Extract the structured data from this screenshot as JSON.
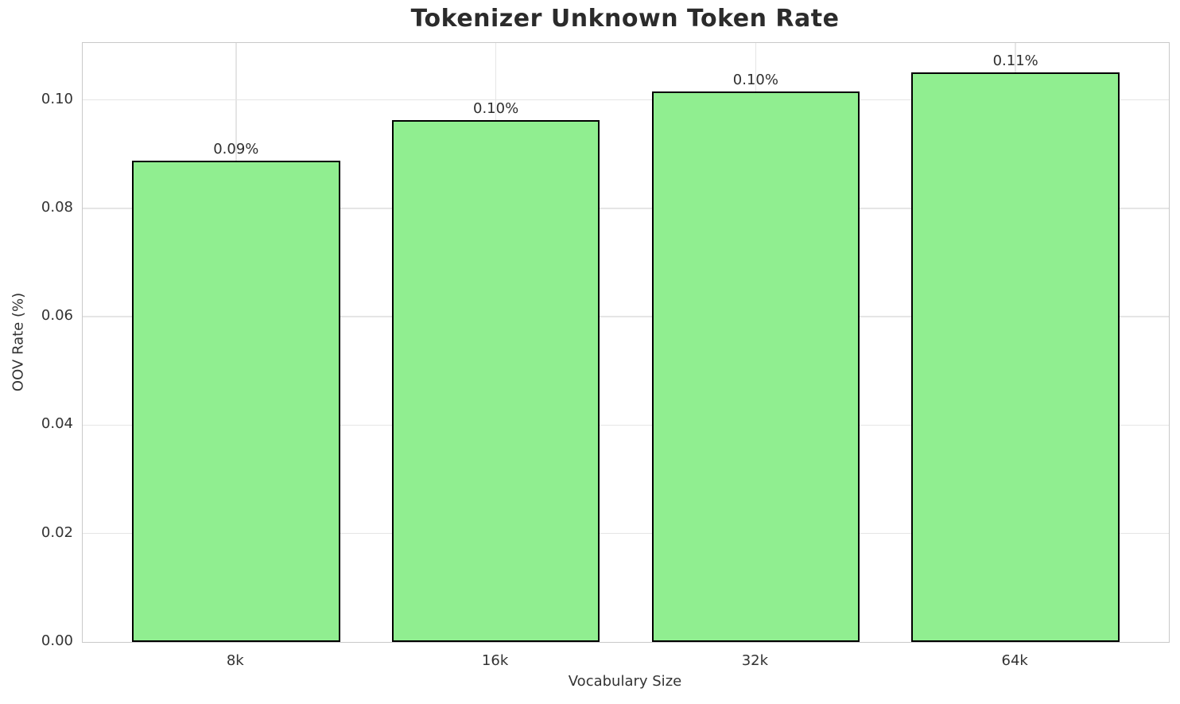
{
  "chart_data": {
    "type": "bar",
    "title": "Tokenizer Unknown Token Rate",
    "xlabel": "Vocabulary Size",
    "ylabel": "OOV Rate (%)",
    "categories": [
      "8k",
      "16k",
      "32k",
      "64k"
    ],
    "values": [
      0.0888,
      0.0962,
      0.1016,
      0.1051
    ],
    "bar_labels": [
      "0.09%",
      "0.10%",
      "0.10%",
      "0.11%"
    ],
    "ylim": [
      0,
      0.1105
    ],
    "xlim": [
      -0.59,
      3.59
    ],
    "bar_width_units": 0.8,
    "yticks": [
      0.0,
      0.02,
      0.04,
      0.06,
      0.08,
      0.1
    ],
    "ytick_labels": [
      "0.00",
      "0.02",
      "0.04",
      "0.06",
      "0.08",
      "0.10"
    ],
    "grid": true,
    "legend_position": "none",
    "colors": {
      "bar_fill": "#90EE90",
      "bar_edge": "#000000",
      "gridline": "#e5e5e5",
      "spine": "#c9c9c9",
      "title_text": "#2b2b2b",
      "tick_text": "#333333"
    }
  }
}
